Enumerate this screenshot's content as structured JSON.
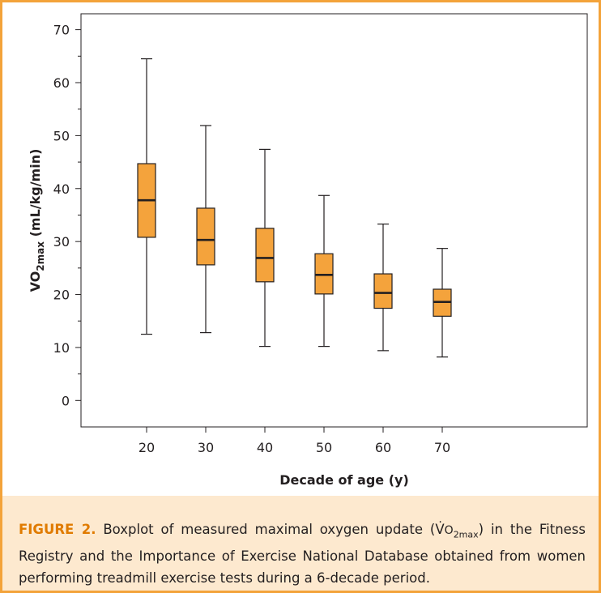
{
  "chart_data": {
    "type": "boxplot",
    "xlabel": "Decade of age (y)",
    "ylabel": {
      "prefix": "V",
      "main": "O",
      "sub": "2max",
      "unit": " (mL/kg/min)"
    },
    "ylim": [
      -5,
      73
    ],
    "yticks": [
      0,
      10,
      20,
      30,
      40,
      50,
      60,
      70
    ],
    "categories": [
      "20",
      "30",
      "40",
      "50",
      "60",
      "70"
    ],
    "boxes": [
      {
        "category": "20",
        "min": 12.5,
        "q1": 30.8,
        "median": 37.8,
        "q3": 44.7,
        "max": 64.5
      },
      {
        "category": "30",
        "min": 12.8,
        "q1": 25.6,
        "median": 30.3,
        "q3": 36.3,
        "max": 51.9
      },
      {
        "category": "40",
        "min": 10.2,
        "q1": 22.4,
        "median": 26.9,
        "q3": 32.5,
        "max": 47.4
      },
      {
        "category": "50",
        "min": 10.2,
        "q1": 20.1,
        "median": 23.7,
        "q3": 27.7,
        "max": 38.7
      },
      {
        "category": "60",
        "min": 9.4,
        "q1": 17.4,
        "median": 20.3,
        "q3": 23.9,
        "max": 33.3
      },
      {
        "category": "70",
        "min": 8.2,
        "q1": 15.9,
        "median": 18.6,
        "q3": 21.0,
        "max": 28.7
      }
    ],
    "grid": false,
    "colors": {
      "box_fill": "#f4a33c",
      "box_stroke": "#231f20",
      "frame": "#f3a33a",
      "caption_bg": "#fde9cf",
      "figure_label": "#e07b00"
    }
  },
  "caption": {
    "label": "FIGURE 2.",
    "text_before": " Boxplot of measured maximal oxygen update (",
    "vo2_v": "V",
    "vo2_o": "O",
    "vo2_sub": "2max",
    "text_after": ") in the Fitness Registry and the Importance of Exercise National Database obtained from women performing treadmill exercise tests during a 6-decade period."
  }
}
